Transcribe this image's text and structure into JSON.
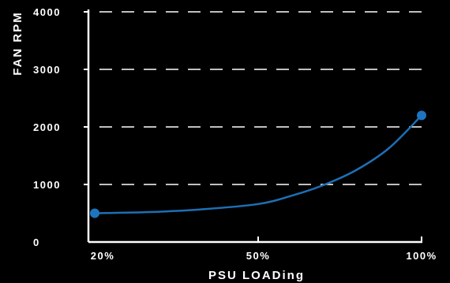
{
  "colors": {
    "background": "#000000",
    "axis": "#ffffff",
    "grid": "#ffffff",
    "curve": "#1e6fb5",
    "marker": "#1e74bf",
    "text": "#ffffff"
  },
  "chart_data": {
    "type": "line",
    "title": "",
    "xlabel": "PSU LOADing",
    "ylabel": "FAN RPM",
    "x_categories": [
      "20%",
      "50%",
      "100%"
    ],
    "x_values": [
      20,
      50,
      100
    ],
    "y_ticks": [
      "0",
      "1000",
      "2000",
      "3000",
      "4000"
    ],
    "y_tick_values": [
      0,
      1000,
      2000,
      3000,
      4000
    ],
    "ylim": [
      0,
      4000
    ],
    "grid": "dashed horizontal",
    "series": [
      {
        "points": [
          {
            "x": 20,
            "y": 500
          },
          {
            "x": 30,
            "y": 520
          },
          {
            "x": 40,
            "y": 570
          },
          {
            "x": 50,
            "y": 660
          },
          {
            "x": 60,
            "y": 800
          },
          {
            "x": 70,
            "y": 990
          },
          {
            "x": 80,
            "y": 1250
          },
          {
            "x": 90,
            "y": 1630
          },
          {
            "x": 100,
            "y": 2200
          }
        ],
        "markers": [
          {
            "x": 20,
            "y": 500
          },
          {
            "x": 100,
            "y": 2200
          }
        ]
      }
    ]
  }
}
